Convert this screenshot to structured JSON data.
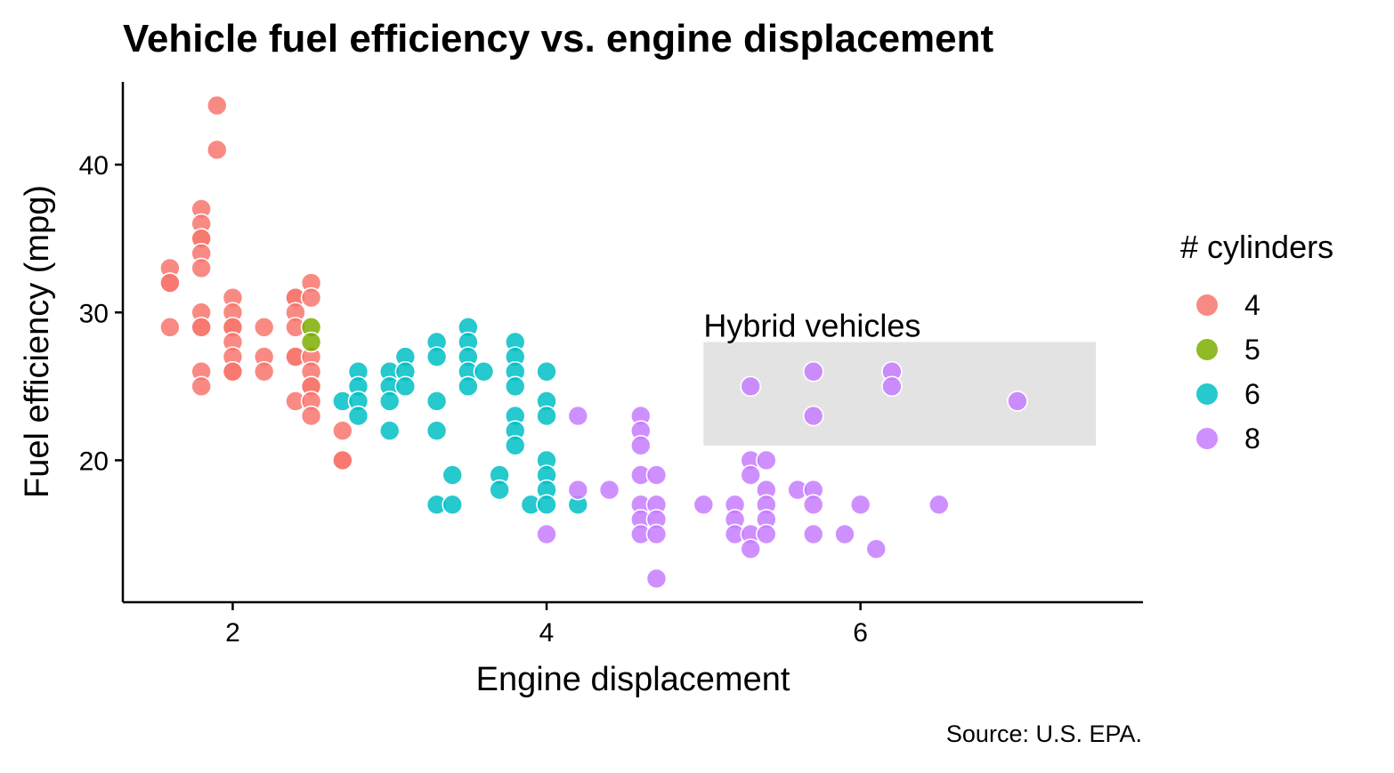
{
  "chart_data": {
    "type": "scatter",
    "title": "Vehicle fuel efficiency vs. engine displacement",
    "xlabel": "Engine displacement",
    "ylabel": "Fuel efficiency (mpg)",
    "caption": "Source: U.S. EPA.",
    "xlim": [
      1.3,
      7.8
    ],
    "ylim": [
      10.4,
      45.6
    ],
    "xticks": [
      2,
      4,
      6
    ],
    "yticks": [
      20,
      30,
      40
    ],
    "xtick_labels": [
      "2",
      "4",
      "6"
    ],
    "ytick_labels": [
      "20",
      "30",
      "40"
    ],
    "grid": false,
    "legend": {
      "title": "# cylinders",
      "placement": "right",
      "entries": [
        {
          "label": "4",
          "color": "#F8766D"
        },
        {
          "label": "5",
          "color": "#7CAE00"
        },
        {
          "label": "6",
          "color": "#00BFC4"
        },
        {
          "label": "8",
          "color": "#C77CFF"
        }
      ]
    },
    "annotation": {
      "text": "Hybrid vehicles",
      "xmin": 5.0,
      "xmax": 7.5,
      "ymin": 21.0,
      "ymax": 28.0,
      "color": "#e3e3e3"
    },
    "series": [
      {
        "name": "4",
        "color": "#F8766D",
        "points": [
          [
            1.6,
            33
          ],
          [
            1.6,
            32
          ],
          [
            1.6,
            32
          ],
          [
            1.6,
            29
          ],
          [
            1.8,
            37
          ],
          [
            1.8,
            36
          ],
          [
            1.8,
            35
          ],
          [
            1.8,
            35
          ],
          [
            1.8,
            34
          ],
          [
            1.8,
            33
          ],
          [
            1.8,
            30
          ],
          [
            1.8,
            29
          ],
          [
            1.8,
            29
          ],
          [
            1.8,
            26
          ],
          [
            1.8,
            25
          ],
          [
            1.9,
            44
          ],
          [
            1.9,
            41
          ],
          [
            2.0,
            31
          ],
          [
            2.0,
            30
          ],
          [
            2.0,
            29
          ],
          [
            2.0,
            29
          ],
          [
            2.0,
            28
          ],
          [
            2.0,
            27
          ],
          [
            2.0,
            26
          ],
          [
            2.0,
            26
          ],
          [
            2.2,
            29
          ],
          [
            2.2,
            27
          ],
          [
            2.2,
            26
          ],
          [
            2.4,
            31
          ],
          [
            2.4,
            31
          ],
          [
            2.4,
            30
          ],
          [
            2.4,
            29
          ],
          [
            2.4,
            27
          ],
          [
            2.4,
            27
          ],
          [
            2.4,
            24
          ],
          [
            2.5,
            32
          ],
          [
            2.5,
            31
          ],
          [
            2.5,
            27
          ],
          [
            2.5,
            26
          ],
          [
            2.5,
            25
          ],
          [
            2.5,
            25
          ],
          [
            2.5,
            24
          ],
          [
            2.5,
            23
          ],
          [
            2.7,
            22
          ],
          [
            2.7,
            20
          ],
          [
            2.7,
            20
          ]
        ]
      },
      {
        "name": "5",
        "color": "#7CAE00",
        "points": [
          [
            2.5,
            29
          ],
          [
            2.5,
            28
          ]
        ]
      },
      {
        "name": "6",
        "color": "#00BFC4",
        "points": [
          [
            2.7,
            24
          ],
          [
            2.8,
            26
          ],
          [
            2.8,
            25
          ],
          [
            2.8,
            24
          ],
          [
            2.8,
            23
          ],
          [
            3.0,
            26
          ],
          [
            3.0,
            25
          ],
          [
            3.0,
            24
          ],
          [
            3.0,
            22
          ],
          [
            3.1,
            27
          ],
          [
            3.1,
            26
          ],
          [
            3.1,
            25
          ],
          [
            3.3,
            28
          ],
          [
            3.3,
            27
          ],
          [
            3.3,
            24
          ],
          [
            3.3,
            22
          ],
          [
            3.3,
            17
          ],
          [
            3.4,
            19
          ],
          [
            3.4,
            17
          ],
          [
            3.5,
            29
          ],
          [
            3.5,
            28
          ],
          [
            3.5,
            27
          ],
          [
            3.5,
            26
          ],
          [
            3.5,
            25
          ],
          [
            3.6,
            26
          ],
          [
            3.7,
            19
          ],
          [
            3.7,
            18
          ],
          [
            3.8,
            28
          ],
          [
            3.8,
            27
          ],
          [
            3.8,
            26
          ],
          [
            3.8,
            25
          ],
          [
            3.8,
            23
          ],
          [
            3.8,
            22
          ],
          [
            3.8,
            21
          ],
          [
            3.9,
            17
          ],
          [
            4.0,
            26
          ],
          [
            4.0,
            24
          ],
          [
            4.0,
            23
          ],
          [
            4.0,
            20
          ],
          [
            4.0,
            19
          ],
          [
            4.0,
            18
          ],
          [
            4.0,
            17
          ],
          [
            4.2,
            17
          ]
        ]
      },
      {
        "name": "8",
        "color": "#C77CFF",
        "points": [
          [
            4.0,
            15
          ],
          [
            4.2,
            23
          ],
          [
            4.2,
            18
          ],
          [
            4.4,
            18
          ],
          [
            4.6,
            23
          ],
          [
            4.6,
            22
          ],
          [
            4.6,
            21
          ],
          [
            4.6,
            19
          ],
          [
            4.6,
            17
          ],
          [
            4.6,
            16
          ],
          [
            4.6,
            15
          ],
          [
            4.7,
            19
          ],
          [
            4.7,
            17
          ],
          [
            4.7,
            16
          ],
          [
            4.7,
            15
          ],
          [
            4.7,
            12
          ],
          [
            5.0,
            17
          ],
          [
            5.2,
            17
          ],
          [
            5.2,
            16
          ],
          [
            5.2,
            15
          ],
          [
            5.3,
            25
          ],
          [
            5.3,
            20
          ],
          [
            5.3,
            19
          ],
          [
            5.3,
            15
          ],
          [
            5.3,
            14
          ],
          [
            5.4,
            20
          ],
          [
            5.4,
            18
          ],
          [
            5.4,
            17
          ],
          [
            5.4,
            16
          ],
          [
            5.4,
            15
          ],
          [
            5.6,
            18
          ],
          [
            5.7,
            26
          ],
          [
            5.7,
            23
          ],
          [
            5.7,
            18
          ],
          [
            5.7,
            17
          ],
          [
            5.7,
            15
          ],
          [
            5.9,
            15
          ],
          [
            6.0,
            17
          ],
          [
            6.1,
            14
          ],
          [
            6.2,
            26
          ],
          [
            6.2,
            25
          ],
          [
            6.5,
            17
          ],
          [
            7.0,
            24
          ]
        ]
      }
    ]
  }
}
